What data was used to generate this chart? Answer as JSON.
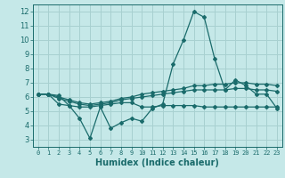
{
  "xlabel": "Humidex (Indice chaleur)",
  "ylabel": "",
  "background_color": "#c5e8e8",
  "grid_color": "#a8d0d0",
  "line_color": "#1a6b6b",
  "xlim": [
    -0.5,
    23.5
  ],
  "ylim": [
    2.5,
    12.5
  ],
  "xticks": [
    0,
    1,
    2,
    3,
    4,
    5,
    6,
    7,
    8,
    9,
    10,
    11,
    12,
    13,
    14,
    15,
    16,
    17,
    18,
    19,
    20,
    21,
    22,
    23
  ],
  "yticks": [
    3,
    4,
    5,
    6,
    7,
    8,
    9,
    10,
    11,
    12
  ],
  "series": [
    [
      6.2,
      6.2,
      6.1,
      5.4,
      4.5,
      3.1,
      5.3,
      3.8,
      4.2,
      4.5,
      4.3,
      5.2,
      5.5,
      8.3,
      10.0,
      12.0,
      11.6,
      8.7,
      6.5,
      7.2,
      6.8,
      6.2,
      6.2,
      5.2
    ],
    [
      6.2,
      6.2,
      5.5,
      5.4,
      5.3,
      5.3,
      5.4,
      5.5,
      5.6,
      5.6,
      5.3,
      5.3,
      5.4,
      5.4,
      5.4,
      5.4,
      5.3,
      5.3,
      5.3,
      5.3,
      5.3,
      5.3,
      5.3,
      5.3
    ],
    [
      6.2,
      6.2,
      5.9,
      5.7,
      5.5,
      5.4,
      5.5,
      5.6,
      5.8,
      5.9,
      6.0,
      6.1,
      6.2,
      6.3,
      6.4,
      6.5,
      6.5,
      6.5,
      6.5,
      6.6,
      6.6,
      6.5,
      6.5,
      6.4
    ],
    [
      6.2,
      6.2,
      6.0,
      5.8,
      5.6,
      5.5,
      5.6,
      5.7,
      5.9,
      6.0,
      6.2,
      6.3,
      6.4,
      6.5,
      6.6,
      6.8,
      6.8,
      6.9,
      6.9,
      7.0,
      7.0,
      6.9,
      6.9,
      6.8
    ]
  ]
}
